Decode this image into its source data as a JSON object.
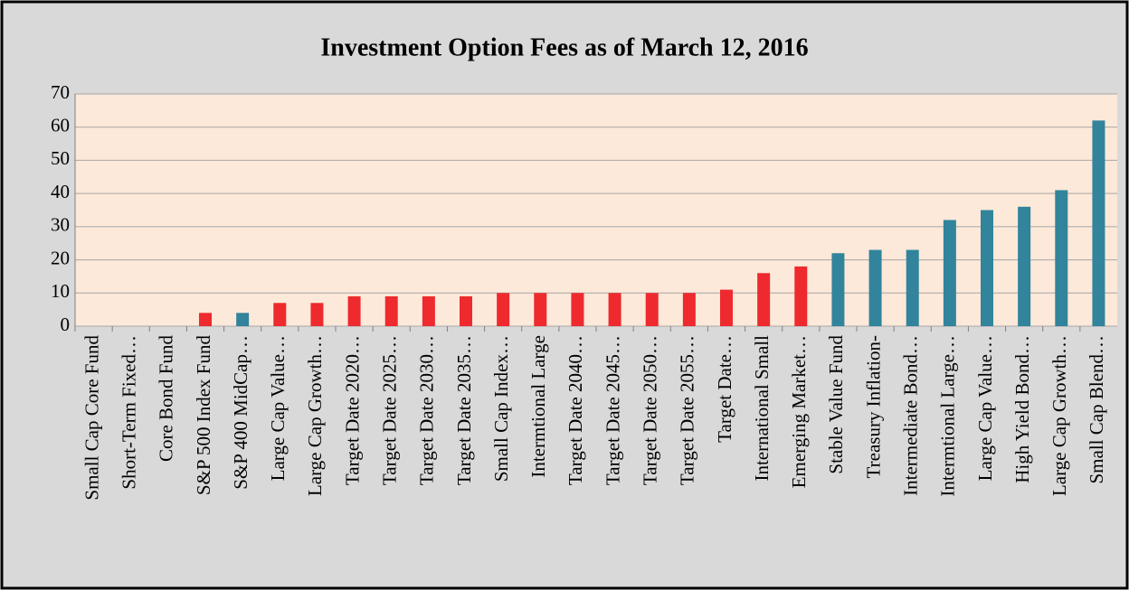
{
  "chart_data": {
    "type": "bar",
    "title": "Investment Option Fees as of March 12, 2016",
    "categories": [
      "Small Cap Core Fund",
      "Short-Term Fixed…",
      "Core Bond Fund",
      "S&P 500 Index Fund",
      "S&P 400 MidCap…",
      "Large Cap Value…",
      "Large Cap Growth…",
      "Target Date 2020…",
      "Target Date 2025…",
      "Target Date 2030…",
      "Target Date 2035…",
      "Small Cap Index…",
      "Intermtional Large",
      "Target Date 2040…",
      "Target Date 2045…",
      "Target Date 2050…",
      "Target Date 2055…",
      "Target Date…",
      "International Small",
      "Emerging Market…",
      "Stable Value Fund",
      "Treasury Inflation-",
      "Intermediate Bond…",
      "Intermtional Large…",
      "Large Cap Value…",
      "High Yield Bond…",
      "Large Cap Growth…",
      "Small Cap Blend…"
    ],
    "values": [
      0,
      0,
      0,
      4,
      4,
      7,
      7,
      9,
      9,
      9,
      9,
      10,
      10,
      10,
      10,
      10,
      10,
      11,
      16,
      18,
      22,
      23,
      23,
      32,
      35,
      36,
      41,
      62
    ],
    "colors": [
      "#ee2a2e",
      "#ee2a2e",
      "#ee2a2e",
      "#ee2a2e",
      "#31849b",
      "#ee2a2e",
      "#ee2a2e",
      "#ee2a2e",
      "#ee2a2e",
      "#ee2a2e",
      "#ee2a2e",
      "#ee2a2e",
      "#ee2a2e",
      "#ee2a2e",
      "#ee2a2e",
      "#ee2a2e",
      "#ee2a2e",
      "#ee2a2e",
      "#ee2a2e",
      "#ee2a2e",
      "#31849b",
      "#31849b",
      "#31849b",
      "#31849b",
      "#31849b",
      "#31849b",
      "#31849b",
      "#31849b"
    ],
    "ylim": [
      0,
      70
    ],
    "yticks": [
      0,
      10,
      20,
      30,
      40,
      50,
      60,
      70
    ],
    "grid": true
  }
}
